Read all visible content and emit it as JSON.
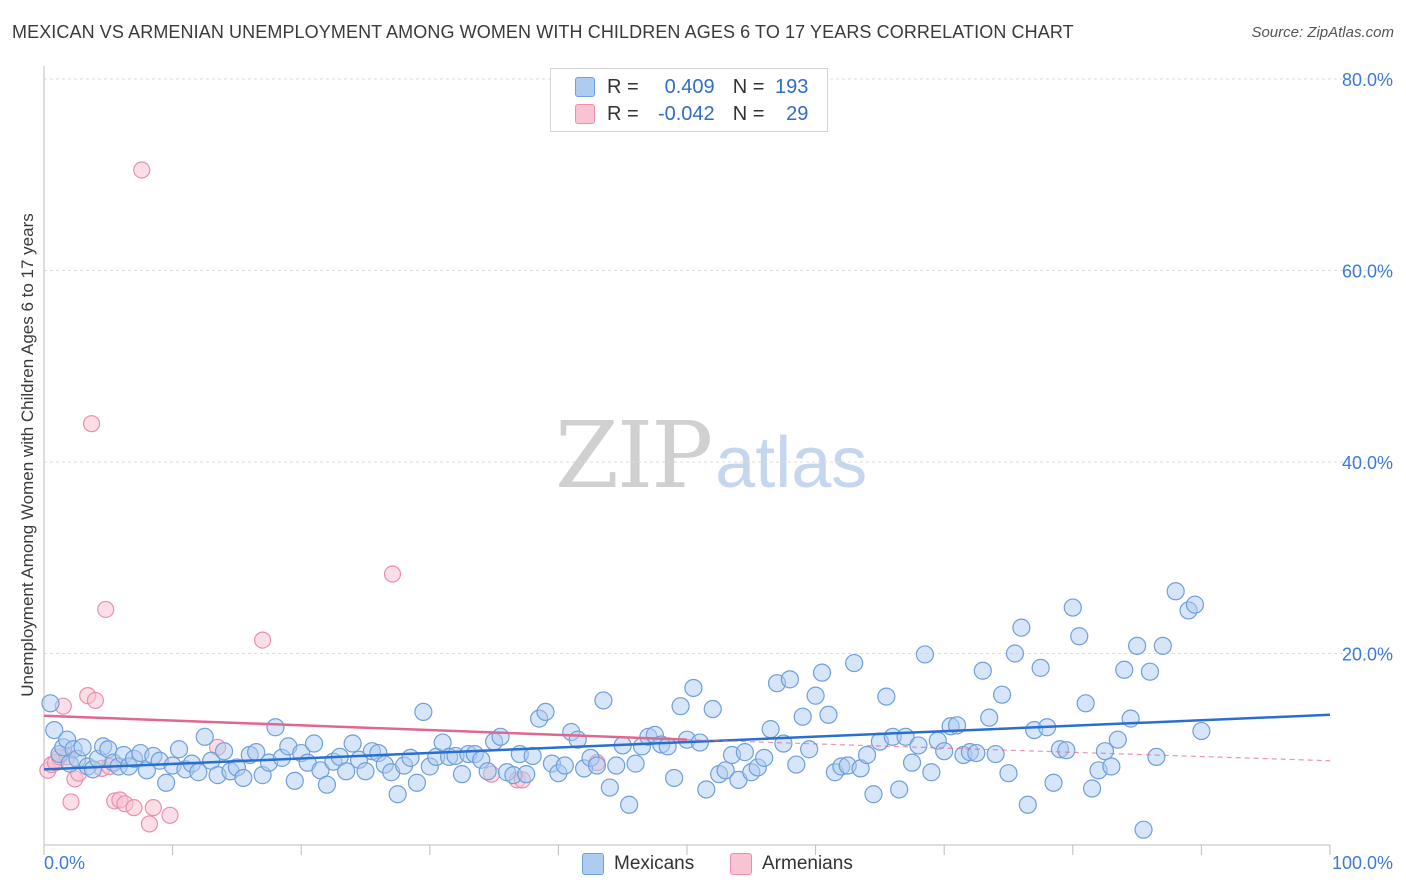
{
  "title": "MEXICAN VS ARMENIAN UNEMPLOYMENT AMONG WOMEN WITH CHILDREN AGES 6 TO 17 YEARS CORRELATION CHART",
  "source": "Source: ZipAtlas.com",
  "watermark": {
    "zip": "ZIP",
    "atlas": "atlas"
  },
  "legend": {
    "r_label": "R =",
    "n_label": "N =",
    "mexicans": {
      "r": "0.409",
      "n": "193"
    },
    "armenians": {
      "r": "-0.042",
      "n": "29"
    }
  },
  "bottom_legend": {
    "mexicans": "Mexicans",
    "armenians": "Armenians"
  },
  "colors": {
    "mexicans_fill": "#aecbf0",
    "mexicans_stroke": "#6f9fdc",
    "mexicans_line": "#2a6fcf",
    "armenians_fill": "#f8c3d2",
    "armenians_stroke": "#ea8fac",
    "armenians_line": "#e0678f",
    "axis_text": "#3d7ad6"
  },
  "chart_data": {
    "type": "scatter",
    "title": "MEXICAN VS ARMENIAN UNEMPLOYMENT AMONG WOMEN WITH CHILDREN AGES 6 TO 17 YEARS CORRELATION CHART",
    "xlabel": "",
    "ylabel": "Unemployment Among Women with Children Ages 6 to 17 years",
    "xlim": [
      0,
      100
    ],
    "ylim": [
      0,
      80
    ],
    "x_tick_labels": [
      "0.0%",
      "100.0%"
    ],
    "y_ticks": [
      20,
      40,
      60,
      80
    ],
    "y_tick_labels": [
      "20.0%",
      "40.0%",
      "60.0%",
      "80.0%"
    ],
    "grid": true,
    "series": [
      {
        "name": "Mexicans",
        "trend": {
          "x": [
            0,
            100
          ],
          "y": [
            7.9,
            13.6
          ]
        },
        "points": [
          [
            0.5,
            14.8
          ],
          [
            0.8,
            12
          ],
          [
            1.2,
            9.5
          ],
          [
            1.5,
            10.2
          ],
          [
            1.8,
            11
          ],
          [
            2,
            8.5
          ],
          [
            2.3,
            10
          ],
          [
            2.6,
            9
          ],
          [
            3,
            10.2
          ],
          [
            3.4,
            8.2
          ],
          [
            3.8,
            7.9
          ],
          [
            4.2,
            9
          ],
          [
            4.6,
            10.3
          ],
          [
            5,
            10
          ],
          [
            5.4,
            8.6
          ],
          [
            5.8,
            8.2
          ],
          [
            6.2,
            9.4
          ],
          [
            6.6,
            8.2
          ],
          [
            7,
            9
          ],
          [
            7.5,
            9.6
          ],
          [
            8,
            7.8
          ],
          [
            8.5,
            9.3
          ],
          [
            9,
            8.8
          ],
          [
            9.5,
            6.5
          ],
          [
            10,
            8.3
          ],
          [
            10.5,
            10
          ],
          [
            11,
            7.9
          ],
          [
            11.5,
            8.5
          ],
          [
            12,
            7.6
          ],
          [
            12.5,
            11.3
          ],
          [
            13,
            8.8
          ],
          [
            13.5,
            7.3
          ],
          [
            14,
            9.8
          ],
          [
            14.5,
            7.7
          ],
          [
            15,
            8.1
          ],
          [
            15.5,
            7
          ],
          [
            16,
            9.4
          ],
          [
            16.5,
            9.7
          ],
          [
            17,
            7.3
          ],
          [
            17.5,
            8.6
          ],
          [
            18,
            12.3
          ],
          [
            18.5,
            9.1
          ],
          [
            19,
            10.3
          ],
          [
            19.5,
            6.7
          ],
          [
            20,
            9.6
          ],
          [
            20.5,
            8.6
          ],
          [
            21,
            10.6
          ],
          [
            21.5,
            7.8
          ],
          [
            22,
            6.3
          ],
          [
            22.5,
            8.7
          ],
          [
            23,
            9.2
          ],
          [
            23.5,
            7.7
          ],
          [
            24,
            10.6
          ],
          [
            24.5,
            8.9
          ],
          [
            25,
            7.7
          ],
          [
            25.5,
            9.8
          ],
          [
            26,
            9.6
          ],
          [
            26.5,
            8.4
          ],
          [
            27,
            7.6
          ],
          [
            27.5,
            5.3
          ],
          [
            28,
            8.3
          ],
          [
            28.5,
            9.1
          ],
          [
            29,
            6.5
          ],
          [
            29.5,
            13.9
          ],
          [
            30,
            8.2
          ],
          [
            30.5,
            9.2
          ],
          [
            31,
            10.7
          ],
          [
            31.5,
            9.2
          ],
          [
            32,
            9.3
          ],
          [
            32.5,
            7.4
          ],
          [
            33,
            9.5
          ],
          [
            33.5,
            9.5
          ],
          [
            34,
            8.9
          ],
          [
            34.5,
            7.7
          ],
          [
            35,
            10.8
          ],
          [
            35.5,
            11.3
          ],
          [
            36,
            7.6
          ],
          [
            36.5,
            7.3
          ],
          [
            37,
            9.5
          ],
          [
            37.5,
            7.4
          ],
          [
            38,
            9.3
          ],
          [
            38.5,
            13.2
          ],
          [
            39,
            13.9
          ],
          [
            39.5,
            8.5
          ],
          [
            40,
            7.5
          ],
          [
            40.5,
            8.3
          ],
          [
            41,
            11.8
          ],
          [
            41.5,
            11
          ],
          [
            42,
            8
          ],
          [
            42.5,
            9.1
          ],
          [
            43,
            8.3
          ],
          [
            43.5,
            15.1
          ],
          [
            44,
            6
          ],
          [
            44.5,
            8.3
          ],
          [
            45,
            10.4
          ],
          [
            45.5,
            4.2
          ],
          [
            46,
            8.5
          ],
          [
            46.5,
            10.3
          ],
          [
            47,
            11.3
          ],
          [
            47.5,
            11.5
          ],
          [
            48,
            10.5
          ],
          [
            48.5,
            10.3
          ],
          [
            49,
            7
          ],
          [
            49.5,
            14.5
          ],
          [
            50,
            11
          ],
          [
            50.5,
            16.4
          ],
          [
            51,
            10.7
          ],
          [
            51.5,
            5.8
          ],
          [
            52,
            14.2
          ],
          [
            52.5,
            7.4
          ],
          [
            53,
            7.8
          ],
          [
            53.5,
            9.4
          ],
          [
            54,
            6.8
          ],
          [
            54.5,
            9.7
          ],
          [
            55,
            7.6
          ],
          [
            55.5,
            8.1
          ],
          [
            56,
            9.1
          ],
          [
            56.5,
            12.1
          ],
          [
            57,
            16.9
          ],
          [
            57.5,
            10.6
          ],
          [
            58,
            17.3
          ],
          [
            58.5,
            8.4
          ],
          [
            59,
            13.4
          ],
          [
            59.5,
            10
          ],
          [
            60,
            15.6
          ],
          [
            60.5,
            18
          ],
          [
            61,
            13.6
          ],
          [
            61.5,
            7.6
          ],
          [
            62,
            8.2
          ],
          [
            62.5,
            8.3
          ],
          [
            63,
            19
          ],
          [
            63.5,
            8
          ],
          [
            64,
            9.4
          ],
          [
            64.5,
            5.3
          ],
          [
            65,
            10.8
          ],
          [
            65.5,
            15.5
          ],
          [
            66,
            11.3
          ],
          [
            66.5,
            5.8
          ],
          [
            67,
            11.3
          ],
          [
            67.5,
            8.6
          ],
          [
            68,
            10.4
          ],
          [
            68.5,
            19.9
          ],
          [
            69,
            7.6
          ],
          [
            69.5,
            10.9
          ],
          [
            70,
            9.8
          ],
          [
            70.5,
            12.4
          ],
          [
            71,
            12.5
          ],
          [
            71.5,
            9.4
          ],
          [
            72,
            9.7
          ],
          [
            72.5,
            9.6
          ],
          [
            73,
            18.2
          ],
          [
            73.5,
            13.3
          ],
          [
            74,
            9.5
          ],
          [
            74.5,
            15.7
          ],
          [
            75,
            7.5
          ],
          [
            75.5,
            20
          ],
          [
            76,
            22.7
          ],
          [
            76.5,
            4.2
          ],
          [
            77,
            12
          ],
          [
            77.5,
            18.5
          ],
          [
            78,
            12.3
          ],
          [
            78.5,
            6.5
          ],
          [
            79,
            10
          ],
          [
            79.5,
            9.9
          ],
          [
            80,
            24.8
          ],
          [
            80.5,
            21.8
          ],
          [
            81,
            14.8
          ],
          [
            81.5,
            5.9
          ],
          [
            82,
            7.8
          ],
          [
            82.5,
            9.8
          ],
          [
            83,
            8.2
          ],
          [
            83.5,
            11
          ],
          [
            84,
            18.3
          ],
          [
            84.5,
            13.2
          ],
          [
            85,
            20.8
          ],
          [
            85.5,
            1.6
          ],
          [
            86,
            18.1
          ],
          [
            86.5,
            9.2
          ],
          [
            87,
            20.8
          ],
          [
            88,
            26.5
          ],
          [
            89,
            24.5
          ],
          [
            89.5,
            25.1
          ],
          [
            90,
            11.9
          ]
        ]
      },
      {
        "name": "Armenians",
        "trend": {
          "x": [
            0,
            50
          ],
          "y": [
            13.5,
            11.0
          ]
        },
        "trend_extension": {
          "x": [
            50,
            100
          ],
          "y": [
            11.0,
            8.8
          ]
        },
        "points": [
          [
            0.3,
            7.8
          ],
          [
            0.6,
            8.4
          ],
          [
            0.9,
            8.6
          ],
          [
            1.2,
            9.2
          ],
          [
            1.5,
            14.5
          ],
          [
            1.8,
            9.2
          ],
          [
            2.1,
            4.5
          ],
          [
            2.4,
            6.9
          ],
          [
            2.7,
            7.5
          ],
          [
            3.4,
            15.6
          ],
          [
            3.7,
            44
          ],
          [
            4,
            15.1
          ],
          [
            4.5,
            8
          ],
          [
            4.8,
            24.6
          ],
          [
            5.1,
            8.2
          ],
          [
            5.5,
            4.6
          ],
          [
            5.9,
            4.7
          ],
          [
            6.3,
            4.3
          ],
          [
            7,
            3.9
          ],
          [
            7.6,
            70.5
          ],
          [
            8.2,
            2.2
          ],
          [
            8.5,
            3.9
          ],
          [
            9.8,
            3.1
          ],
          [
            13.5,
            10.2
          ],
          [
            17,
            21.4
          ],
          [
            27.1,
            28.3
          ],
          [
            34.8,
            7.4
          ],
          [
            36.8,
            6.8
          ],
          [
            37.2,
            6.8
          ],
          [
            43,
            8.6
          ]
        ]
      }
    ]
  }
}
